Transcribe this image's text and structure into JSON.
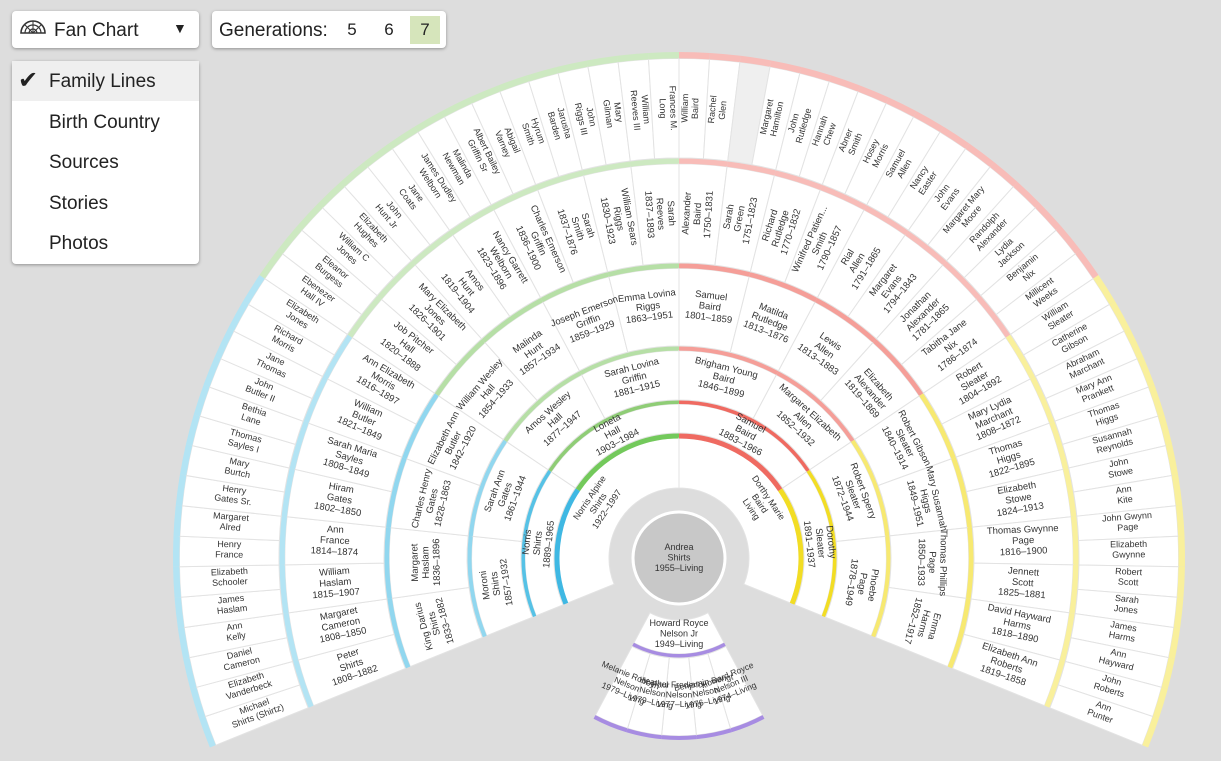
{
  "controls": {
    "view_label": "Fan Chart",
    "view_icon": "fan-chart-icon",
    "caret": "▼",
    "generations_label": "Generations:",
    "generation_options": [
      "5",
      "6",
      "7"
    ],
    "generations_selected": "7"
  },
  "menu": {
    "items": [
      "Family Lines",
      "Birth Country",
      "Sources",
      "Stories",
      "Photos"
    ],
    "selected": "Family Lines",
    "check": "✔"
  },
  "colors": {
    "paternal_paternal": "#8fcd76",
    "paternal_maternal": "#56c2e6",
    "maternal_paternal": "#ef6a61",
    "maternal_maternal": "#f2dd24",
    "descendants": "#a78ce2",
    "center": "#c8c8c8"
  },
  "fan": {
    "center": {
      "name": "Andrea\nShirts",
      "dates": "1955–Living"
    },
    "children": [
      {
        "name": "Howard Royce\nNelson Jr",
        "dates": "1949–Living"
      }
    ],
    "spouses": [
      {
        "name": "Norris Alpine\nShirts",
        "dates": "1922–1997"
      },
      {
        "name": "Dorthy Marie\nBaird",
        "dates": "Living"
      }
    ],
    "grandchildren": [
      {
        "name": "Howard Royce\nNelson III",
        "dates": "1974–Living"
      },
      {
        "name": "Benjamin Bengt\nNelson",
        "dates": "1976–Living"
      },
      {
        "name": "Paul Frederick\nNelson",
        "dates": "1977–Living"
      },
      {
        "name": "Heather\nNelson",
        "dates": "1979–Living"
      },
      {
        "name": "Melanie Robbyn\nNelson",
        "dates": "1979–Living"
      }
    ],
    "gen1": [
      {
        "name": "Norris\nShirts",
        "dates": "1889–1965"
      },
      {
        "name": "Loneta\nHall",
        "dates": "1903–1984"
      },
      {
        "name": "Samuel\nBaird",
        "dates": "1883–1966"
      },
      {
        "name": "Dorothy\nSleater",
        "dates": "1891–1937"
      }
    ],
    "gen2": [
      {
        "name": "Moroni\nShirts",
        "dates": "1857–1932"
      },
      {
        "name": "Sarah Ann\nGates",
        "dates": "1861–1944"
      },
      {
        "name": "Amos Wesley\nHall",
        "dates": "1877–1947"
      },
      {
        "name": "Sarah Lovina\nGriffin",
        "dates": "1881–1915"
      },
      {
        "name": "Brigham Young\nBaird",
        "dates": "1846–1899"
      },
      {
        "name": "Margaret Elizabeth\nAllen",
        "dates": "1852–1932"
      },
      {
        "name": "Robert Sperry\nSleater",
        "dates": "1872–1944"
      },
      {
        "name": "Phoebe\nPage",
        "dates": "1878–1949"
      }
    ],
    "gen3": [
      {
        "name": "King Darius\nShirts",
        "dates": "1833–1882"
      },
      {
        "name": "Margaret\nHaslam",
        "dates": "1836–1896"
      },
      {
        "name": "Charles Henry\nGates",
        "dates": "1828–1863"
      },
      {
        "name": "Elizabeth Ann\nButler",
        "dates": "1842–1920"
      },
      {
        "name": "William Wesley\nHall",
        "dates": "1854–1933"
      },
      {
        "name": "Malinda\nHunt",
        "dates": "1857–1934"
      },
      {
        "name": "Joseph Emerson\nGriffin",
        "dates": "1859–1929"
      },
      {
        "name": "Emma Lovina\nRiggs",
        "dates": "1863–1951"
      },
      {
        "name": "Samuel\nBaird",
        "dates": "1801–1859"
      },
      {
        "name": "Matilda\nRutledge",
        "dates": "1813–1876"
      },
      {
        "name": "Lewis\nAllen",
        "dates": "1813–1883"
      },
      {
        "name": "Elizabeth\nAlexander",
        "dates": "1819–1869"
      },
      {
        "name": "Robert Gibson\nSleater",
        "dates": "1840–1914"
      },
      {
        "name": "Mary Susannah\nHiggs",
        "dates": "1849–1951"
      },
      {
        "name": "Thomas Phillips\nPage",
        "dates": "1850–1933"
      },
      {
        "name": "Emma\nHarms",
        "dates": "1852–1917"
      }
    ],
    "gen4": [
      {
        "name": "Peter\nShirts",
        "dates": "1808–1882"
      },
      {
        "name": "Margaret\nCameron",
        "dates": "1808–1850"
      },
      {
        "name": "William\nHaslam",
        "dates": "1815–1907"
      },
      {
        "name": "Ann\nFrance",
        "dates": "1814–1874"
      },
      {
        "name": "Hiram\nGates",
        "dates": "1802–1850"
      },
      {
        "name": "Sarah Maria\nSayles",
        "dates": "1808–1849"
      },
      {
        "name": "William\nButler",
        "dates": "1821–1849"
      },
      {
        "name": "Ann Elizabeth\nMorris",
        "dates": "1816–1897"
      },
      {
        "name": "Job Pitcher\nHall",
        "dates": "1820–1888"
      },
      {
        "name": "Mary Elizabeth\nJones",
        "dates": "1826–1901"
      },
      {
        "name": "Amos\nHunt",
        "dates": "1819–1904"
      },
      {
        "name": "Nancy Garrett\nWelborn",
        "dates": "1823–1896"
      },
      {
        "name": "Charles Emerson\nGriffin",
        "dates": "1836–1900"
      },
      {
        "name": "Sarah\nSmith",
        "dates": "1837–1876"
      },
      {
        "name": "William Sears\nRiggs",
        "dates": "1830–1923"
      },
      {
        "name": "Sarah\nReeves",
        "dates": "1837–1893"
      },
      {
        "name": "Alexander\nBaird",
        "dates": "1750–1831"
      },
      {
        "name": "Sarah\nGreen",
        "dates": "1751–1823"
      },
      {
        "name": "Richard\nRutledge",
        "dates": "1770–1832"
      },
      {
        "name": "Winifred Patien...\nSmith",
        "dates": "1790–1857"
      },
      {
        "name": "Rial\nAllen",
        "dates": "1791–1865"
      },
      {
        "name": "Margaret\nEvans",
        "dates": "1794–1843"
      },
      {
        "name": "Jonathan\nAlexander",
        "dates": "1781–1865"
      },
      {
        "name": "Tabitha Jane\nNix",
        "dates": "1786–1874"
      },
      {
        "name": "Robert\nSleater",
        "dates": "1804–1892"
      },
      {
        "name": "Mary Lydia\nMarchant",
        "dates": "1808–1872"
      },
      {
        "name": "Thomas\nHiggs",
        "dates": "1822–1895"
      },
      {
        "name": "Elizabeth\nStowe",
        "dates": "1824–1913"
      },
      {
        "name": "Thomas Gwynne\nPage",
        "dates": "1816–1900"
      },
      {
        "name": "Jennett\nScott",
        "dates": "1825–1881"
      },
      {
        "name": "David Hayward\nHarms",
        "dates": "1818–1890"
      },
      {
        "name": "Elizabeth Ann\nRoberts",
        "dates": "1819–1858"
      }
    ],
    "gen5": [
      "Michael\nShirts (Shirtz)",
      "Elizabeth\nVanderbeck",
      "Daniel\nCameron",
      "Ann\nKelly",
      "James\nHaslam",
      "Elizabeth\nSchooler",
      "Henry\nFrance",
      "Margaret\nAlred",
      "Henry\nGates Sr.",
      "Mary\nBurtch",
      "Thomas\nSayles I",
      "Bethia\nLane",
      "John\nButler II",
      "Jane\nThomas",
      "Richard\nMorris",
      "Elizabeth\nJones",
      "Ebenezer\nHall IV",
      "Eleanor\nBurgess",
      "William C\nJones",
      "Elizabeth\nHughes",
      "John\nHunt Jr",
      "Jane\nCoats",
      "James Dudley\nWelborn",
      "Malinda\nNewman",
      "Albert Bailey\nGriffin Sr",
      "Abigail\nVarney",
      "Hyrum\nSmith",
      "Jarusha\nBarden",
      "John\nRiggs III",
      "Mary\nGilman",
      "William\nReeves III",
      "Frances M.\nLong",
      "William\nBaird",
      "Rachel\nGlen",
      "",
      "Margaret\nHamilton",
      "John\nRutledge",
      "Hannah\nChew",
      "Abner\nSmith",
      "Hosey\nMorris",
      "Samuel\nAllen",
      "Nancy\nEaster",
      "John\nEvans",
      "Margaret Mary\nMoore",
      "Randolph\nAlexander",
      "Lydia\nJackson",
      "Benjamin\nNix",
      "Millicent\nWeeks",
      "William\nSleater",
      "Catherine\nGibson",
      "Abraham\nMarchant",
      "Mary Ann\nPrankett",
      "Thomas\nHiggs",
      "Susannah\nReynolds",
      "John\nStowe",
      "Ann\nKite",
      "John Gwynn\nPage",
      "Elizabeth\nGwynne",
      "Robert\nScott",
      "Sarah\nJones",
      "James\nHarms",
      "Ann\nHayward",
      "John\nRoberts",
      "Ann\nPunter"
    ]
  }
}
